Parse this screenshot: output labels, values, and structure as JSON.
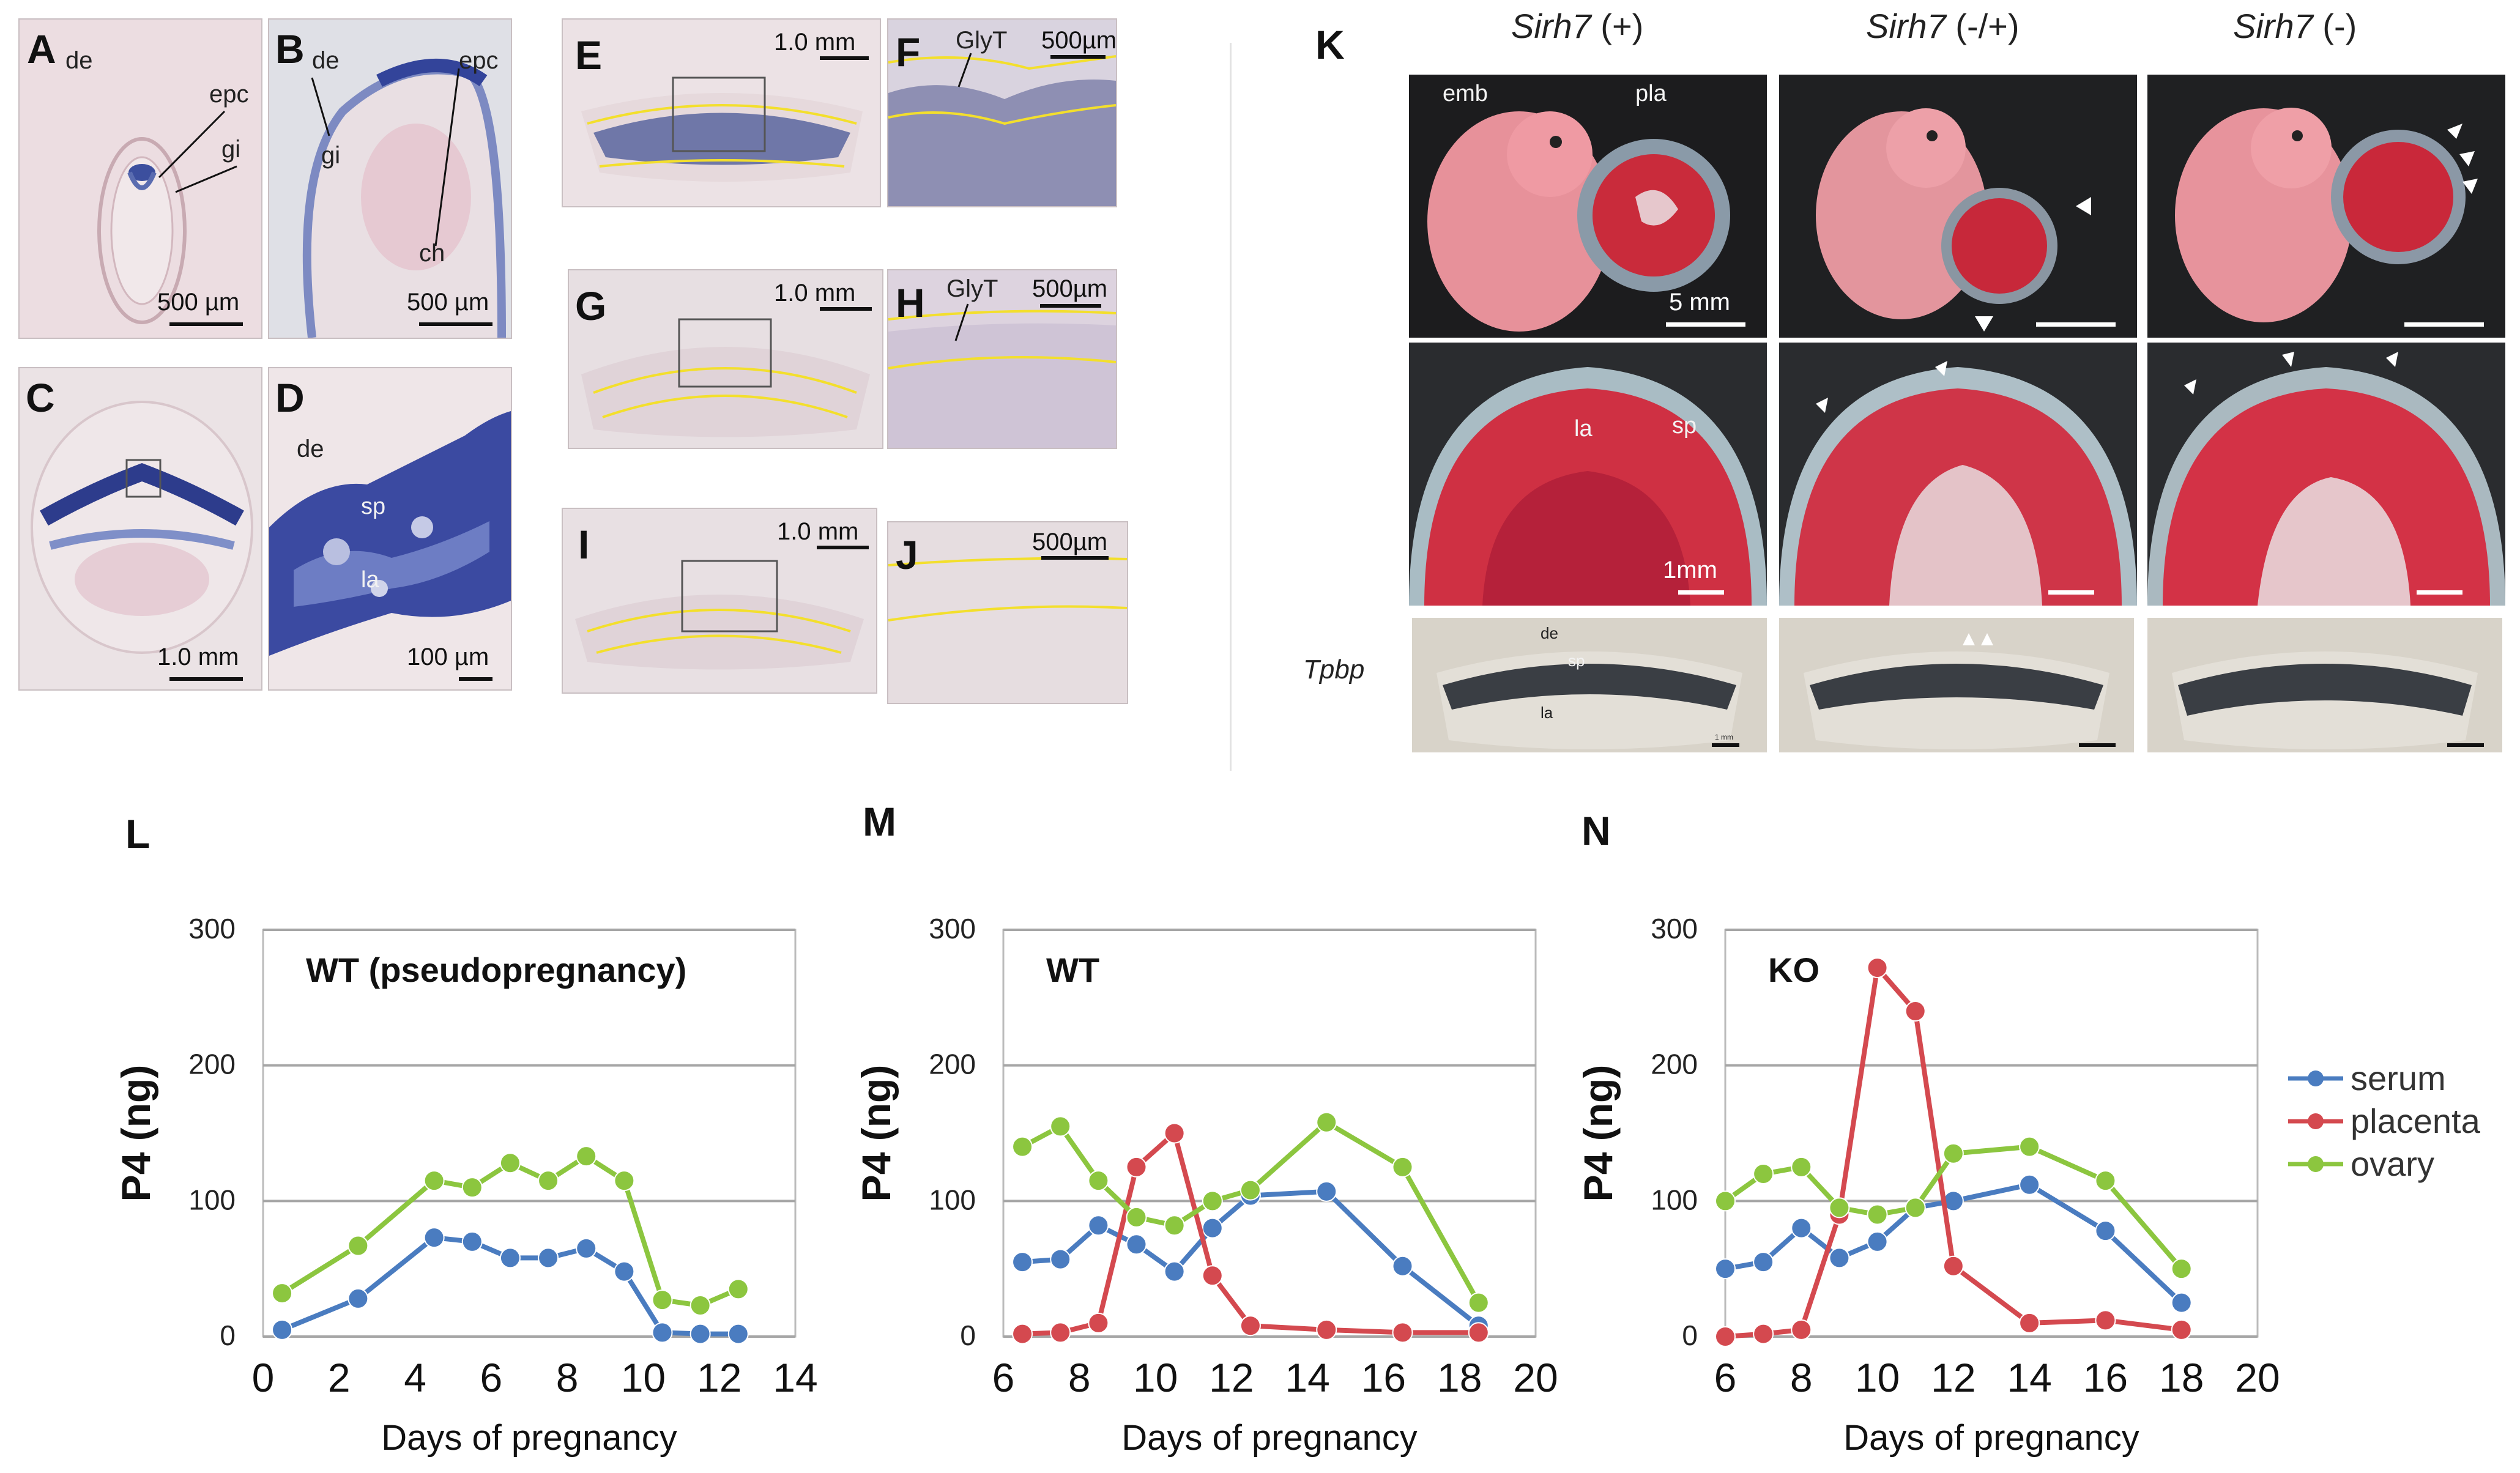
{
  "panels": {
    "A": {
      "label": "A",
      "ann": [
        "de",
        "epc",
        "gi"
      ],
      "scale": "500 µm"
    },
    "B": {
      "label": "B",
      "ann": [
        "de",
        "epc",
        "gi",
        "ch"
      ],
      "scale": "500 µm"
    },
    "C": {
      "label": "C",
      "scale": "1.0 mm"
    },
    "D": {
      "label": "D",
      "ann": [
        "de",
        "sp",
        "la"
      ],
      "scale": "100 µm"
    },
    "E": {
      "label": "E",
      "scale": "1.0 mm"
    },
    "F": {
      "label": "F",
      "ann": [
        "GlyT"
      ],
      "scale": "500µm"
    },
    "G": {
      "label": "G",
      "scale": "1.0 mm"
    },
    "H": {
      "label": "H",
      "ann": [
        "GlyT"
      ],
      "scale": "500µm"
    },
    "I": {
      "label": "I",
      "scale": "1.0 mm"
    },
    "J": {
      "label": "J",
      "scale": "500µm"
    },
    "K": {
      "label": "K",
      "genotypes": [
        {
          "gene": "Sirh7",
          "suffix": " (+)"
        },
        {
          "gene": "Sirh7",
          "suffix": " (-/+)"
        },
        {
          "gene": "Sirh7",
          "suffix": " (-)"
        }
      ],
      "ann": [
        "emb",
        "pla",
        "la",
        "sp",
        "de",
        "sp",
        "la"
      ],
      "scale_top": "5 mm",
      "scale_mid": "1mm",
      "row_label": "Tpbp",
      "scale_bot": "1 mm"
    }
  },
  "charts": [
    {
      "label": "L",
      "title": "WT (pseudopregnancy)",
      "ylabel": "P4 (ng)",
      "xlabel": "Days of pregnancy",
      "chart_data": {
        "type": "line",
        "xlim": [
          0,
          14
        ],
        "ylim": [
          0,
          300
        ],
        "xticks": [
          0,
          2,
          4,
          6,
          8,
          10,
          12,
          14
        ],
        "yticks": [
          0,
          100,
          200,
          300
        ],
        "series": [
          {
            "name": "serum",
            "color": "#4a7cc0",
            "x": [
              0.5,
              2.5,
              4.5,
              5.5,
              6.5,
              7.5,
              8.5,
              9.5,
              10.5,
              11.5,
              12.5
            ],
            "values": [
              5,
              28,
              73,
              70,
              58,
              58,
              65,
              48,
              3,
              2,
              2
            ]
          },
          {
            "name": "ovary",
            "color": "#8cc63f",
            "x": [
              0.5,
              2.5,
              4.5,
              5.5,
              6.5,
              7.5,
              8.5,
              9.5,
              10.5,
              11.5,
              12.5
            ],
            "values": [
              32,
              67,
              115,
              110,
              128,
              115,
              133,
              115,
              27,
              23,
              35
            ]
          }
        ]
      }
    },
    {
      "label": "M",
      "title": "WT",
      "ylabel": "P4 (ng)",
      "xlabel": "Days of pregnancy",
      "chart_data": {
        "type": "line",
        "xlim": [
          6,
          20
        ],
        "ylim": [
          0,
          300
        ],
        "xticks": [
          6,
          8,
          10,
          12,
          14,
          16,
          18,
          20
        ],
        "yticks": [
          0,
          100,
          200,
          300
        ],
        "series": [
          {
            "name": "serum",
            "color": "#4a7cc0",
            "x": [
              6.5,
              7.5,
              8.5,
              9.5,
              10.5,
              11.5,
              12.5,
              14.5,
              16.5,
              18.5
            ],
            "values": [
              55,
              57,
              82,
              68,
              48,
              80,
              104,
              107,
              52,
              8
            ]
          },
          {
            "name": "placenta",
            "color": "#d4494f",
            "x": [
              6.5,
              7.5,
              8.5,
              9.5,
              10.5,
              11.5,
              12.5,
              14.5,
              16.5,
              18.5
            ],
            "values": [
              2,
              3,
              10,
              125,
              150,
              45,
              8,
              5,
              3,
              3
            ]
          },
          {
            "name": "ovary",
            "color": "#8cc63f",
            "x": [
              6.5,
              7.5,
              8.5,
              9.5,
              10.5,
              11.5,
              12.5,
              14.5,
              16.5,
              18.5
            ],
            "values": [
              140,
              155,
              115,
              88,
              82,
              100,
              108,
              158,
              125,
              25
            ]
          }
        ]
      }
    },
    {
      "label": "N",
      "title": "KO",
      "ylabel": "P4 (ng)",
      "xlabel": "Days of pregnancy",
      "chart_data": {
        "type": "line",
        "xlim": [
          6,
          20
        ],
        "ylim": [
          0,
          300
        ],
        "xticks": [
          6,
          8,
          10,
          12,
          14,
          16,
          18,
          20
        ],
        "yticks": [
          0,
          100,
          200,
          300
        ],
        "series": [
          {
            "name": "serum",
            "color": "#4a7cc0",
            "x": [
              6,
              7,
              8,
              9,
              10,
              11,
              12,
              14,
              16,
              18
            ],
            "values": [
              50,
              55,
              80,
              58,
              70,
              95,
              100,
              112,
              78,
              25
            ]
          },
          {
            "name": "placenta",
            "color": "#d4494f",
            "x": [
              6,
              7,
              8,
              9,
              10,
              11,
              12,
              14,
              16,
              18
            ],
            "values": [
              0,
              2,
              5,
              90,
              272,
              240,
              52,
              10,
              12,
              5
            ]
          },
          {
            "name": "ovary",
            "color": "#8cc63f",
            "x": [
              6,
              7,
              8,
              9,
              10,
              11,
              12,
              14,
              16,
              18
            ],
            "values": [
              100,
              120,
              125,
              95,
              90,
              95,
              135,
              140,
              115,
              50
            ]
          }
        ]
      }
    }
  ],
  "legend": [
    {
      "name": "serum",
      "color": "#4a7cc0"
    },
    {
      "name": "placenta",
      "color": "#d4494f"
    },
    {
      "name": "ovary",
      "color": "#8cc63f"
    }
  ]
}
